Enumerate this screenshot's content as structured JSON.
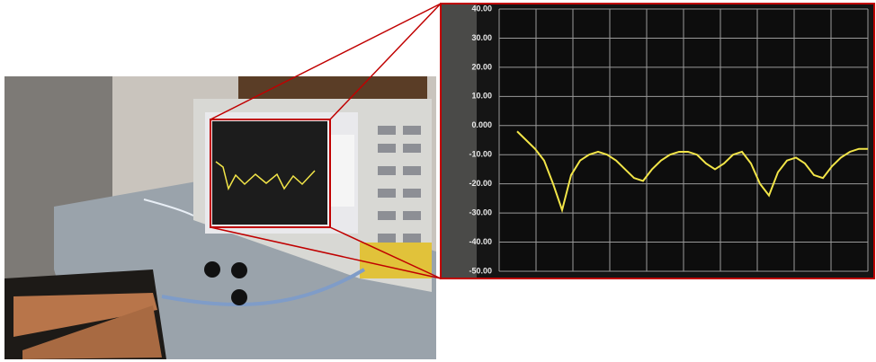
{
  "chart_data": {
    "type": "line",
    "categories": [
      null,
      null,
      null,
      null,
      null,
      null,
      null,
      null,
      null,
      null,
      null,
      null,
      null,
      null,
      null,
      null,
      null,
      null,
      null,
      null,
      null,
      null,
      null,
      null,
      null,
      null,
      null,
      null,
      null,
      null,
      null,
      null,
      null,
      null,
      null,
      null,
      null,
      null,
      null,
      null
    ],
    "values": [
      -2,
      -5,
      -8,
      -12,
      -20,
      -29,
      -17,
      -12,
      -10,
      -9,
      -10,
      -12,
      -15,
      -18,
      -19,
      -15,
      -12,
      -10,
      -9,
      -9,
      -10,
      -13,
      -15,
      -13,
      -10,
      -9,
      -13,
      -20,
      -24,
      -16,
      -12,
      -11,
      -13,
      -17,
      -18,
      -14,
      -11,
      -9,
      -8,
      -8
    ],
    "color": "#f2e548",
    "ylim": [
      -50,
      40
    ],
    "yticks": [
      {
        "value": 40,
        "label": "40.00"
      },
      {
        "value": 30,
        "label": "30.00"
      },
      {
        "value": 20,
        "label": "20.00"
      },
      {
        "value": 10,
        "label": "10.00"
      },
      {
        "value": 0,
        "label": "0.000"
      },
      {
        "value": -10,
        "label": "-10.00"
      },
      {
        "value": -20,
        "label": "-20.00"
      },
      {
        "value": -30,
        "label": "-30.00"
      },
      {
        "value": -40,
        "label": "-40.00"
      },
      {
        "value": -50,
        "label": "-50.00"
      }
    ],
    "grid": true
  }
}
